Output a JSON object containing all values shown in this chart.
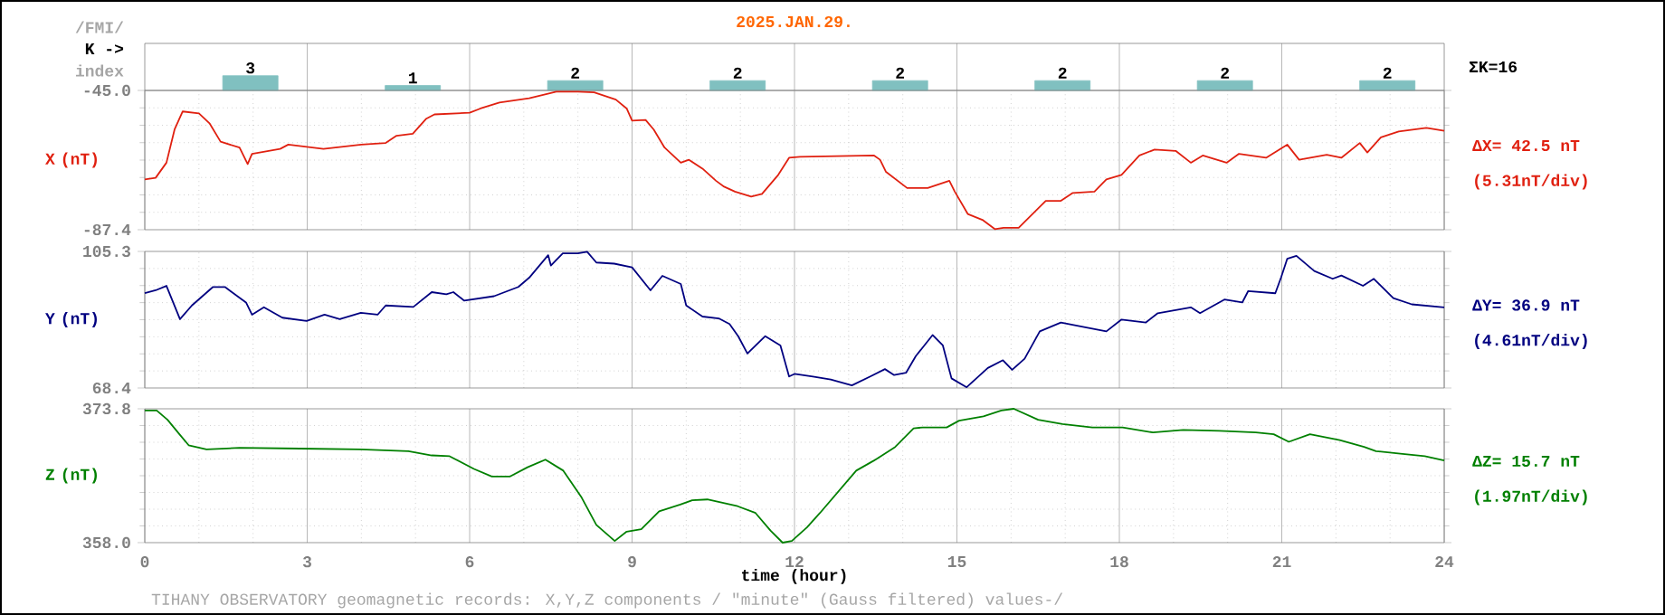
{
  "chart_data": [
    {
      "type": "bar",
      "title": "2025.JAN.29.",
      "categories": [
        null,
        null,
        null,
        null,
        null,
        null,
        null,
        null
      ],
      "values": [
        3,
        1,
        2,
        2,
        2,
        2,
        2,
        2
      ],
      "color": "#80c0c0",
      "data_labels": true,
      "tick_labels": false,
      "grid": "x",
      "annotations": [
        "/FMI/",
        "K ->",
        "index",
        "ΣK=16"
      ]
    },
    {
      "type": "line",
      "ylabel": "X (nT)",
      "xlim": [
        0,
        24
      ],
      "xticks": [
        0,
        3,
        6,
        9,
        12,
        15,
        18,
        21,
        24
      ],
      "ylim": [
        -87.4,
        -45.0
      ],
      "yticks": [
        {
          "value": -87.4,
          "label": "-87.4"
        },
        {
          "value": -45.0,
          "label": "-45.0"
        }
      ],
      "grid": true,
      "tick_labels": "y",
      "x": [
        0,
        0.2,
        0.4,
        0.55,
        0.7,
        1.0,
        1.2,
        1.4,
        1.75,
        1.9,
        1.98,
        2.5,
        2.65,
        3.3,
        4.0,
        4.45,
        4.65,
        4.95,
        5.2,
        5.35,
        6.0,
        6.2,
        6.55,
        7.1,
        7.6,
        8.0,
        8.3,
        8.7,
        8.9,
        9.0,
        9.25,
        9.4,
        9.6,
        9.9,
        10.05,
        10.3,
        10.55,
        10.7,
        10.9,
        11.2,
        11.4,
        11.7,
        11.9,
        12.1,
        13.47,
        13.58,
        13.69,
        14.08,
        14.46,
        14.86,
        14.96,
        15.2,
        15.47,
        15.7,
        15.86,
        16.14,
        16.64,
        16.92,
        17.14,
        17.54,
        17.76,
        18.04,
        18.37,
        18.65,
        19.04,
        19.32,
        19.54,
        19.98,
        20.21,
        20.71,
        21.1,
        21.32,
        21.83,
        22.1,
        22.44,
        22.58,
        22.83,
        23.16,
        23.67,
        24
      ],
      "series": [
        {
          "color": "#e02010",
          "values": [
            -72.1,
            -71.6,
            -67.0,
            -56.9,
            -51.4,
            -52.0,
            -55.1,
            -60.6,
            -62.4,
            -67.4,
            -64.3,
            -62.8,
            -61.5,
            -62.8,
            -61.5,
            -61.0,
            -58.8,
            -58.2,
            -53.6,
            -52.3,
            -51.8,
            -50.5,
            -48.7,
            -47.4,
            -45.4,
            -45.4,
            -45.6,
            -47.8,
            -50.5,
            -54.2,
            -54.0,
            -56.9,
            -62.4,
            -67.0,
            -66.1,
            -68.8,
            -72.5,
            -74.3,
            -75.8,
            -77.3,
            -76.5,
            -70.7,
            -65.5,
            -65.2,
            -64.8,
            -66.1,
            -69.8,
            -74.7,
            -74.7,
            -72.5,
            -75.8,
            -82.6,
            -84.4,
            -87.2,
            -86.8,
            -86.8,
            -78.6,
            -78.6,
            -76.2,
            -75.8,
            -72.1,
            -70.7,
            -64.8,
            -63.0,
            -63.4,
            -67.0,
            -64.8,
            -67.0,
            -64.3,
            -65.5,
            -61.5,
            -66.1,
            -64.6,
            -65.5,
            -61.0,
            -63.9,
            -59.3,
            -57.5,
            -56.4,
            -57.3
          ]
        }
      ],
      "annotations": [
        "ΔX= 42.5 nT",
        "(5.31nT/div)"
      ]
    },
    {
      "type": "line",
      "ylabel": "Y (nT)",
      "xlim": [
        0,
        24
      ],
      "xticks": [
        0,
        3,
        6,
        9,
        12,
        15,
        18,
        21,
        24
      ],
      "ylim": [
        68.4,
        105.3
      ],
      "yticks": [
        {
          "value": 68.4,
          "label": "68.4"
        },
        {
          "value": 105.3,
          "label": "105.3"
        }
      ],
      "grid": true,
      "tick_labels": "y",
      "x": [
        0,
        0.2,
        0.4,
        0.65,
        0.87,
        1.26,
        1.48,
        1.87,
        1.98,
        2.2,
        2.54,
        2.99,
        3.32,
        3.6,
        3.99,
        4.3,
        4.45,
        4.96,
        5.3,
        5.57,
        5.7,
        5.9,
        6.45,
        6.9,
        7.1,
        7.45,
        7.5,
        7.72,
        8.0,
        8.17,
        8.34,
        8.67,
        9.0,
        9.34,
        9.56,
        9.9,
        10.0,
        10.3,
        10.6,
        10.8,
        10.96,
        11.13,
        11.46,
        11.74,
        11.9,
        12.0,
        12.34,
        12.67,
        13.06,
        13.4,
        13.67,
        13.84,
        14.06,
        14.24,
        14.55,
        14.74,
        14.9,
        15.18,
        15.57,
        15.85,
        16.02,
        16.25,
        16.53,
        16.92,
        17.37,
        17.76,
        18.04,
        18.49,
        18.71,
        19.32,
        19.49,
        19.94,
        20.27,
        20.38,
        20.88,
        20.99,
        21.1,
        21.27,
        21.6,
        21.94,
        22.1,
        22.5,
        22.7,
        23.06,
        23.4,
        24
      ],
      "series": [
        {
          "color": "#000080",
          "values": [
            94.0,
            94.8,
            96.0,
            87.0,
            90.7,
            95.7,
            95.7,
            91.5,
            88.2,
            90.2,
            87.4,
            86.5,
            88.2,
            87.0,
            88.7,
            88.2,
            90.7,
            90.3,
            94.3,
            93.7,
            94.3,
            92.0,
            93.2,
            95.7,
            98.2,
            104.3,
            101.5,
            104.8,
            104.8,
            105.2,
            102.3,
            102.0,
            101.0,
            94.8,
            98.7,
            96.5,
            90.7,
            87.7,
            87.2,
            85.7,
            82.4,
            77.7,
            82.4,
            79.9,
            71.5,
            72.2,
            71.5,
            70.7,
            69.1,
            71.5,
            73.5,
            71.9,
            72.5,
            77.0,
            82.7,
            79.9,
            71.0,
            68.6,
            73.8,
            75.9,
            73.3,
            76.3,
            83.7,
            86.1,
            84.8,
            83.7,
            86.9,
            86.1,
            88.6,
            90.2,
            88.6,
            92.3,
            91.5,
            94.6,
            94.0,
            98.4,
            103.3,
            104.1,
            100.0,
            97.9,
            98.8,
            96.0,
            97.9,
            92.7,
            91.0,
            90.2
          ]
        }
      ],
      "annotations": [
        "ΔY= 36.9 nT",
        "(4.61nT/div)"
      ]
    },
    {
      "type": "line",
      "ylabel": "Z (nT)",
      "xlabel": "time (hour)",
      "xlim": [
        0,
        24
      ],
      "xticks": [
        0,
        3,
        6,
        9,
        12,
        15,
        18,
        21,
        24
      ],
      "ylim": [
        358.0,
        373.8
      ],
      "yticks": [
        {
          "value": 358.0,
          "label": "358.0"
        },
        {
          "value": 373.8,
          "label": "373.8"
        }
      ],
      "grid": true,
      "x": [
        0,
        0.22,
        0.42,
        0.64,
        0.81,
        1.14,
        1.75,
        2.87,
        3.98,
        4.87,
        5.3,
        5.63,
        6.08,
        6.41,
        6.74,
        7.07,
        7.4,
        7.73,
        8.07,
        8.34,
        8.68,
        8.9,
        9.17,
        9.5,
        9.89,
        10.11,
        10.39,
        10.95,
        11.28,
        11.56,
        11.78,
        11.95,
        12.23,
        12.47,
        13.14,
        13.47,
        13.86,
        14.2,
        14.37,
        14.81,
        15.04,
        15.49,
        15.82,
        16.05,
        16.5,
        16.95,
        17.5,
        18.06,
        18.62,
        19.18,
        19.85,
        20.52,
        20.85,
        21.13,
        21.52,
        22.07,
        22.52,
        22.74,
        23.19,
        23.64,
        24
      ],
      "series": [
        {
          "color": "#008000",
          "values": [
            373.6,
            373.6,
            372.5,
            370.8,
            369.5,
            369.0,
            369.2,
            369.1,
            369.0,
            368.8,
            368.3,
            368.2,
            366.7,
            365.8,
            365.8,
            366.9,
            367.8,
            366.5,
            363.3,
            360.1,
            358.2,
            359.3,
            359.6,
            361.7,
            362.5,
            363.0,
            363.1,
            362.3,
            361.5,
            359.4,
            358.0,
            358.2,
            359.8,
            361.5,
            366.5,
            367.7,
            369.3,
            371.5,
            371.6,
            371.6,
            372.4,
            372.9,
            373.6,
            373.8,
            372.5,
            372.0,
            371.6,
            371.6,
            371.0,
            371.3,
            371.2,
            371.0,
            370.8,
            369.9,
            370.8,
            370.1,
            369.3,
            368.8,
            368.5,
            368.2,
            367.7
          ]
        }
      ],
      "annotations": [
        "ΔZ= 15.7 nT",
        "(1.97nT/div)",
        "TIHANY OBSERVATORY   geomagnetic records:  X,Y,Z  components   / \"minute\" (Gauss filtered) values-/"
      ]
    }
  ]
}
